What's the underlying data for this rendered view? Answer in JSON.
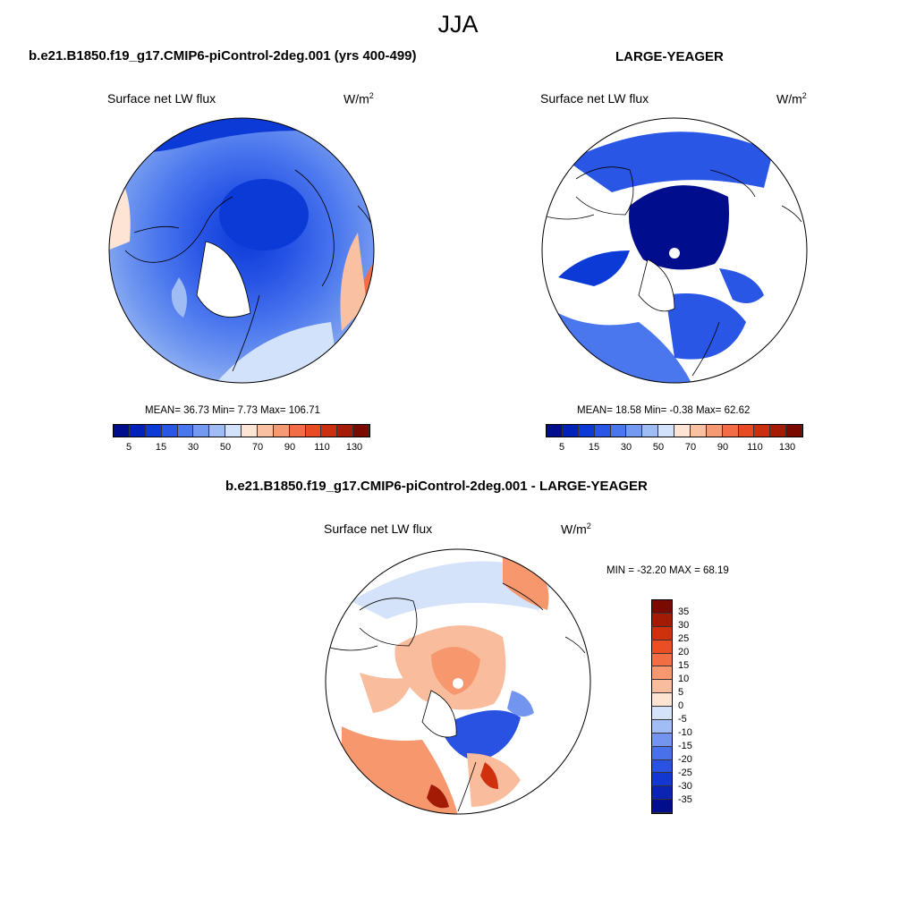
{
  "season": "JJA",
  "colors": {
    "land": "#ffffff",
    "coast": "#000000",
    "abs_scale": [
      "#000d8c",
      "#0022b8",
      "#0b3ad6",
      "#2a56e6",
      "#4a76ee",
      "#7399f0",
      "#a0bcf4",
      "#d2e2fa",
      "#fde4d4",
      "#f9c0a1",
      "#f69a73",
      "#f26c47",
      "#e84a24",
      "#cc2f10",
      "#a51b06",
      "#7a0a00"
    ],
    "diff_scale": [
      "#000d8c",
      "#0b24b3",
      "#1238d1",
      "#2a52e2",
      "#4a71ec",
      "#7395f0",
      "#a2bdf5",
      "#d4e3fa",
      "#fde3d2",
      "#f9bc9c",
      "#f6976e",
      "#f26d44",
      "#ea4e22",
      "#cf300d",
      "#a31a05",
      "#7a0a00"
    ]
  },
  "panels": [
    {
      "id": "model",
      "title": "b.e21.B1850.f19_g17.CMIP6-piControl-2deg.001 (yrs 400-499)",
      "variable": "Surface net LW flux",
      "units_base": "W/m",
      "units_exp": "2",
      "stats": "MEAN=  36.73  Min=   7.73  Max= 106.71",
      "colorbar_ticks": [
        "5",
        "15",
        "30",
        "50",
        "70",
        "90",
        "110",
        "130"
      ]
    },
    {
      "id": "obs",
      "title": "LARGE-YEAGER",
      "variable": "Surface net LW flux",
      "units_base": "W/m",
      "units_exp": "2",
      "stats": "MEAN=  18.58  Min=  -0.38  Max=  62.62",
      "colorbar_ticks": [
        "5",
        "15",
        "30",
        "50",
        "70",
        "90",
        "110",
        "130"
      ]
    },
    {
      "id": "diff",
      "title": "b.e21.B1850.f19_g17.CMIP6-piControl-2deg.001 - LARGE-YEAGER",
      "variable": "Surface net LW flux",
      "units_base": "W/m",
      "units_exp": "2",
      "stats": "MIN = -32.20 MAX =  68.19",
      "colorbar_ticks": [
        "35",
        "30",
        "25",
        "20",
        "15",
        "10",
        "5",
        "0",
        "-5",
        "-10",
        "-15",
        "-20",
        "-25",
        "-30",
        "-35"
      ]
    }
  ]
}
